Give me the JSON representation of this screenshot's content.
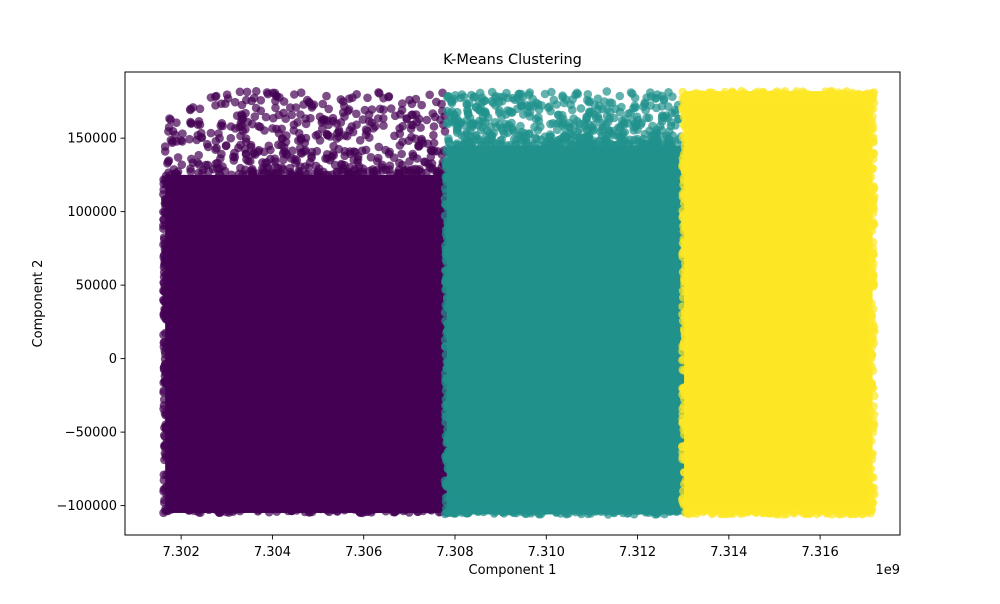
{
  "chart_data": {
    "type": "scatter",
    "title": "K-Means Clustering",
    "xlabel": "Component 1",
    "ylabel": "Component 2",
    "x_offset_label": "1e9",
    "xlim": [
      7.30077,
      7.31775
    ],
    "ylim": [
      -120000,
      195000
    ],
    "x_ticks": [
      7.302,
      7.304,
      7.306,
      7.308,
      7.31,
      7.312,
      7.314,
      7.316
    ],
    "x_tick_labels": [
      "7.302",
      "7.304",
      "7.306",
      "7.308",
      "7.310",
      "7.312",
      "7.314",
      "7.316"
    ],
    "y_ticks": [
      -100000,
      -50000,
      0,
      50000,
      100000,
      150000
    ],
    "y_tick_labels": [
      "−100000",
      "−50000",
      "0",
      "50000",
      "100000",
      "150000"
    ],
    "grid": false,
    "point_alpha": 0.7,
    "clusters": [
      {
        "id": 0,
        "color": "#440154",
        "x_range": [
          7.30165,
          7.30782
        ],
        "y_range": [
          -105000,
          182000
        ],
        "dense_y_max": 125000,
        "edge_x_range": [
          7.30165,
          7.30782
        ],
        "edge_y_range": [
          125000,
          182000
        ]
      },
      {
        "id": 1,
        "color": "#21918c",
        "x_range": [
          7.30782,
          7.31302
        ],
        "y_range": [
          -106000,
          182000
        ],
        "dense_y_max": 145000,
        "edge_x_range": [
          7.30782,
          7.31302
        ],
        "edge_y_range": [
          145000,
          182000
        ]
      },
      {
        "id": 2,
        "color": "#fde725",
        "x_range": [
          7.31302,
          7.31715
        ],
        "y_range": [
          -106000,
          182000
        ],
        "dense_y_max": 182000,
        "edge_x_range": [
          7.31302,
          7.31715
        ],
        "edge_y_range": [
          175000,
          182000
        ]
      }
    ]
  }
}
